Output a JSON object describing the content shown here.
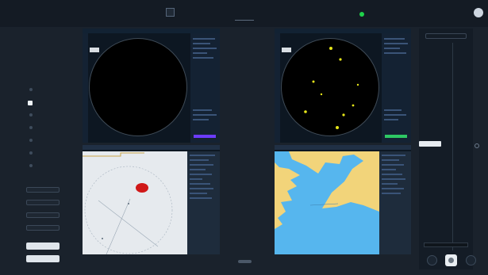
{
  "top_bar": {
    "brand": "",
    "left_text": "",
    "mid_text_1": "",
    "mid_text_2": "",
    "right_text_1": "",
    "right_text_2": "",
    "status_led_color": "#1fd24a"
  },
  "sidebar": {
    "menu": [
      {
        "label": "",
        "active": false
      },
      {
        "label": "",
        "active": true
      },
      {
        "label": "",
        "active": false
      },
      {
        "label": "",
        "active": false
      },
      {
        "label": "",
        "active": false
      },
      {
        "label": "",
        "active": false
      },
      {
        "label": "",
        "active": false
      }
    ],
    "buttons": [
      {
        "label": ""
      },
      {
        "label": ""
      },
      {
        "label": ""
      },
      {
        "label": ""
      }
    ],
    "bottom_buttons": [
      {
        "label": ""
      },
      {
        "label": ""
      }
    ]
  },
  "panels": {
    "radar_left": {
      "header_left": "",
      "header_right": "",
      "center_text": ""
    },
    "radar_right": {
      "header_left": "",
      "header_right": ""
    },
    "chart_left": {
      "header_left": "",
      "header_right": ""
    },
    "chart_right": {
      "header_left": "",
      "header_right": ""
    }
  },
  "right_strip": {
    "title": "",
    "items": [
      "",
      "",
      "",
      "",
      "",
      "",
      "",
      "",
      ""
    ],
    "selected_item": "",
    "bottom_label": ""
  },
  "colors": {
    "background": "#1a222c",
    "radar_targets": "#e5e51a",
    "chart_sea": "#56b6ee",
    "chart_land": "#f2d47a",
    "track_marker": "#d01818"
  }
}
